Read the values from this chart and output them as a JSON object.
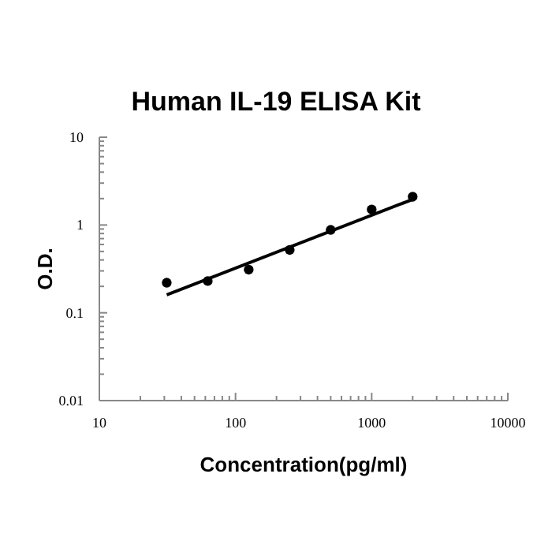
{
  "chart_data": {
    "type": "scatter",
    "title": "Human IL-19 ELISA Kit",
    "xlabel": "Concentration(pg/ml)",
    "ylabel": "O.D.",
    "log": "xy",
    "grid": false,
    "xlim": [
      10,
      10000
    ],
    "xticks": [
      10,
      100,
      1000,
      10000
    ],
    "ylim": [
      0.01,
      10
    ],
    "yticks": [
      0.01,
      0.1,
      1,
      10
    ],
    "series": [
      {
        "color": "#000000",
        "marker": "circle",
        "x": [
          31.25,
          62.5,
          125,
          250,
          500,
          1000,
          2000
        ],
        "values": [
          0.22,
          0.23,
          0.31,
          0.52,
          0.88,
          1.5,
          2.1
        ]
      },
      {
        "type": "line",
        "color": "#000000",
        "marker": "none",
        "line_style": "solid",
        "x": [
          31.25,
          2000
        ],
        "values": [
          0.16,
          1.96
        ]
      }
    ]
  }
}
